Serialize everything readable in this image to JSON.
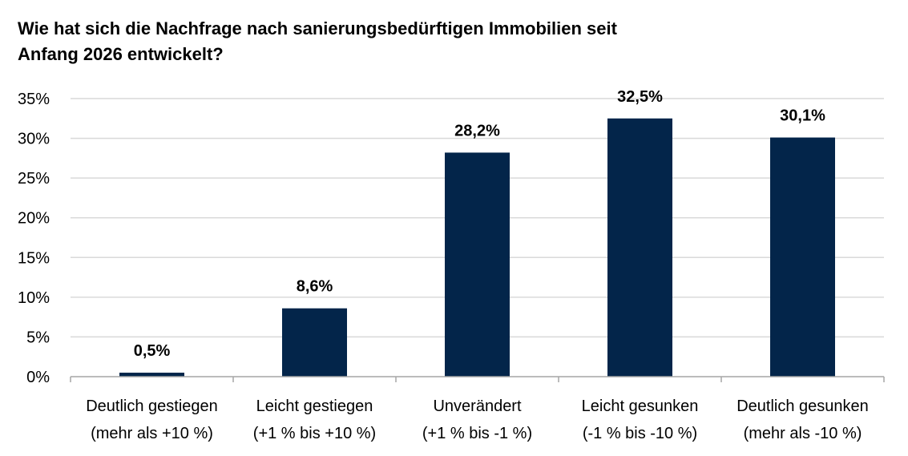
{
  "title": {
    "line1": "Wie hat sich die Nachfrage nach sanierungsbedürftigen Immobilien seit",
    "line2": "Anfang 2026 entwickelt?"
  },
  "colors": {
    "bar": "#03254a",
    "grid": "#d9d9d9",
    "axis": "#a6a6a6"
  },
  "chart_data": {
    "type": "bar",
    "categories": [
      [
        "Deutlich gestiegen",
        "(mehr als +10 %)"
      ],
      [
        "Leicht gestiegen",
        "(+1 % bis  +10 %)"
      ],
      [
        "Unverändert",
        "(+1 % bis  -1 %)"
      ],
      [
        "Leicht gesunken",
        "(-1 % bis  -10 %)"
      ],
      [
        "Deutlich gesunken",
        "(mehr als -10 %)"
      ]
    ],
    "values": [
      0.5,
      8.6,
      28.2,
      32.5,
      30.1
    ],
    "data_labels": [
      "0,5%",
      "8,6%",
      "28,2%",
      "32,5%",
      "30,1%"
    ],
    "ylim": [
      0,
      35
    ],
    "yticks": [
      0,
      5,
      10,
      15,
      20,
      25,
      30,
      35
    ],
    "ytick_labels": [
      "0%",
      "5%",
      "10%",
      "15%",
      "20%",
      "25%",
      "30%",
      "35%"
    ],
    "grid": true,
    "legend": "none",
    "xlabel": "",
    "ylabel": ""
  }
}
